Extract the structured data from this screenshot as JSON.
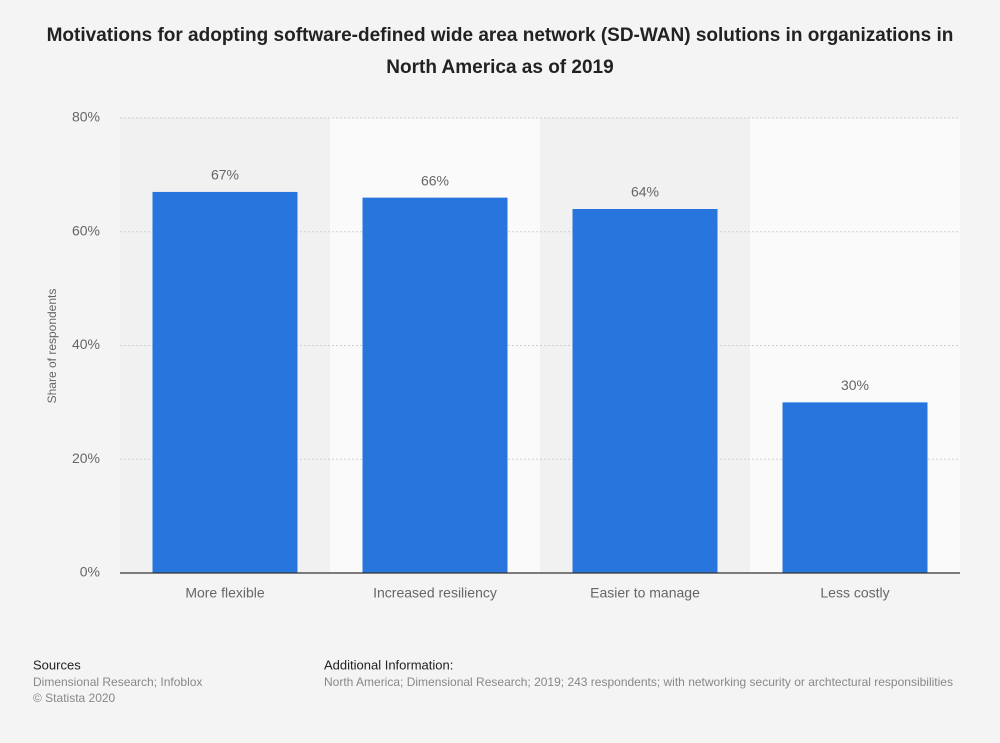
{
  "chart_data": {
    "type": "bar",
    "title": "Motivations for adopting software-defined wide area network (SD-WAN) solutions in organizations in North America as of 2019",
    "y_label": "Share of respondents",
    "categories": [
      "More flexible",
      "Increased resiliency",
      "Easier to manage",
      "Less costly"
    ],
    "values": [
      67,
      66,
      64,
      30
    ],
    "value_labels": [
      "67%",
      "66%",
      "64%",
      "30%"
    ],
    "color": "#2876dd",
    "ylim": [
      0,
      80
    ],
    "yticks": [
      {
        "value": 0,
        "label": "0%"
      },
      {
        "value": 20,
        "label": "20%"
      },
      {
        "value": 40,
        "label": "40%"
      },
      {
        "value": 60,
        "label": "60%"
      },
      {
        "value": 80,
        "label": "80%"
      }
    ],
    "grid": true
  },
  "footer": {
    "sources_title": "Sources",
    "sources": "Dimensional Research; Infoblox",
    "copyright": "© Statista 2020",
    "info_title": "Additional Information:",
    "info": "North America; Dimensional Research; 2019; 243 respondents; with networking security or archtectural responsibilities"
  }
}
